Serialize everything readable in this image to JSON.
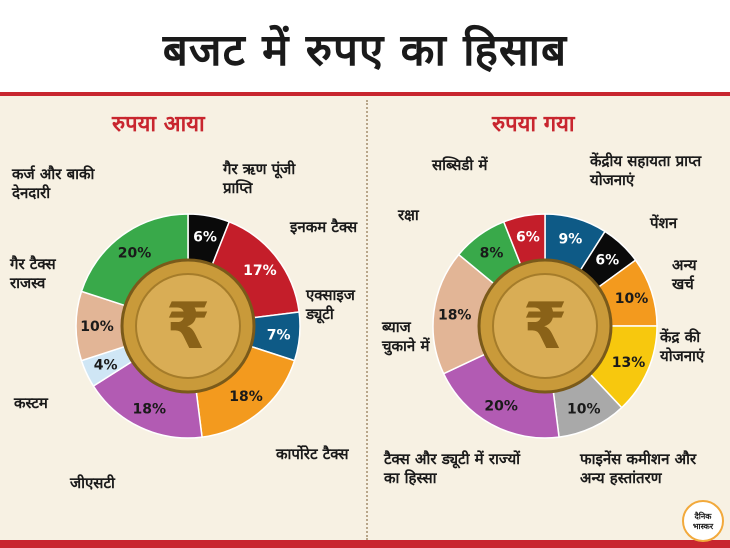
{
  "header": {
    "title": "बजट में रुपए का हिसाब"
  },
  "logo_text": "दैनिक भास्कर",
  "chart_data": [
    {
      "type": "pie",
      "title": "रुपया आया",
      "slices": [
        {
          "label": "गैर ऋण पूंजी प्राप्ति",
          "value": 6,
          "display": "6%",
          "color": "#0a0a0a"
        },
        {
          "label": "इनकम टैक्स",
          "value": 17,
          "display": "17%",
          "color": "#c41e2a"
        },
        {
          "label": "एक्साइज ड्यूटी",
          "value": 7,
          "display": "7%",
          "color": "#0e5a86"
        },
        {
          "label": "कार्पोरेट टैक्स",
          "value": 18,
          "display": "18%",
          "color": "#f39a1e"
        },
        {
          "label": "जीएसटी",
          "value": 18,
          "display": "18%",
          "color": "#b25bb3"
        },
        {
          "label": "कस्टम",
          "value": 4,
          "display": "4%",
          "color": "#cfe6f5"
        },
        {
          "label": "गैर टैक्स राजस्व",
          "value": 10,
          "display": "10%",
          "color": "#e2b596"
        },
        {
          "label": "कर्ज और बाकी देनदारी",
          "value": 20,
          "display": "20%",
          "color": "#39a94a"
        }
      ]
    },
    {
      "type": "pie",
      "title": "रुपया गया",
      "slices": [
        {
          "label": "केंद्रीय सहायता प्राप्त योजनाएं",
          "value": 9,
          "display": "9%",
          "color": "#0e5a86"
        },
        {
          "label": "पेंशन",
          "value": 6,
          "display": "6%",
          "color": "#0a0a0a"
        },
        {
          "label": "अन्य खर्च",
          "value": 10,
          "display": "10%",
          "color": "#f39a1e"
        },
        {
          "label": "केंद्र की योजनाएं",
          "value": 13,
          "display": "13%",
          "color": "#f7c80e"
        },
        {
          "label": "फाइनेंस कमीशन और अन्य हस्तांतरण",
          "value": 10,
          "display": "10%",
          "color": "#a9a9a9"
        },
        {
          "label": "टैक्स और ड्यूटी में राज्यों का हिस्सा",
          "value": 20,
          "display": "20%",
          "color": "#b25bb3"
        },
        {
          "label": "ब्याज चुकाने में",
          "value": 18,
          "display": "18%",
          "color": "#e2b596"
        },
        {
          "label": "रक्षा",
          "value": 8,
          "display": "8%",
          "color": "#39a94a"
        },
        {
          "label": "सब्सिडी में",
          "value": 6,
          "display": "6%",
          "color": "#c41e2a"
        }
      ]
    }
  ]
}
